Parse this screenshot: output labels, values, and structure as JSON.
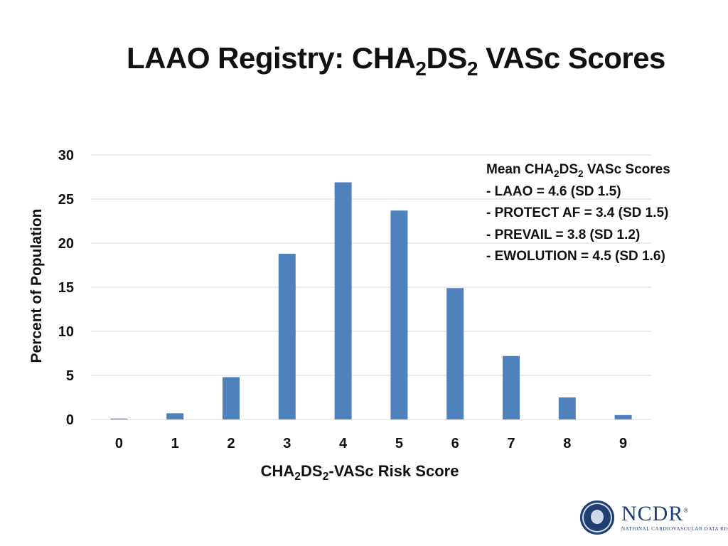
{
  "title": {
    "pre": "LAAO Registry: CHA",
    "sub1": "2",
    "mid": "DS",
    "sub2": "2",
    "post": " VASc Scores"
  },
  "xlabel": {
    "pre": "CHA",
    "sub1": "2",
    "mid": "DS",
    "sub2": "2",
    "post": "-VASc Risk Score"
  },
  "ylabel": "Percent of Population",
  "stats": {
    "heading": {
      "pre": "Mean CHA",
      "sub1": "2",
      "mid": "DS",
      "sub2": "2",
      "post": " VASc Scores"
    },
    "lines": [
      "- LAAO = 4.6 (SD 1.5)",
      "- PROTECT AF = 3.4 (SD 1.5)",
      "- PREVAIL = 3.8 (SD 1.2)",
      "- EWOLUTION = 4.5 (SD 1.6)"
    ]
  },
  "logo": {
    "name": "NCDR",
    "subtitle": "NATIONAL CARDIOVASCULAR DATA REGISTRY",
    "reg_mark": "®"
  },
  "chart_data": {
    "type": "bar",
    "categories": [
      "0",
      "1",
      "2",
      "3",
      "4",
      "5",
      "6",
      "7",
      "8",
      "9"
    ],
    "values": [
      0.1,
      0.7,
      4.8,
      18.8,
      26.9,
      23.7,
      14.9,
      7.2,
      2.5,
      0.5
    ],
    "ylim": [
      0,
      30
    ],
    "yticks": [
      0,
      5,
      10,
      15,
      20,
      25,
      30
    ],
    "grid": true,
    "bar_color": "#4f81bd",
    "grid_color": "#d9d9d9"
  }
}
